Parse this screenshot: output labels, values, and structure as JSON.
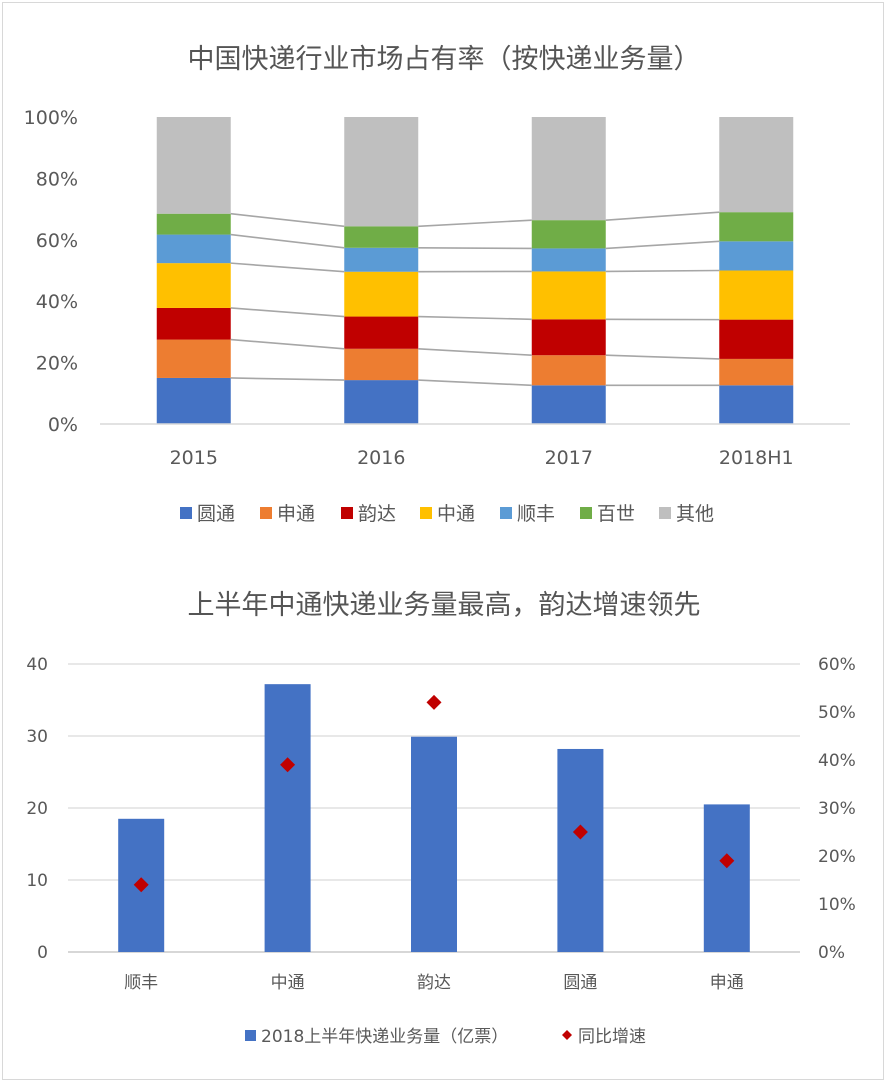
{
  "chart_data": [
    {
      "type": "bar",
      "stacked": true,
      "percent": true,
      "title": "中国快递行业市场占有率（按快递业务量）",
      "categories": [
        "2015",
        "2016",
        "2017",
        "2018H1"
      ],
      "ylim": [
        0,
        100
      ],
      "y_ticks": [
        "0%",
        "20%",
        "40%",
        "60%",
        "80%",
        "100%"
      ],
      "legend_position": "bottom",
      "series_lines": true,
      "series": [
        {
          "name": "圆通",
          "color": "#4472C4",
          "values": [
            15,
            14.3,
            12.6,
            12.6
          ]
        },
        {
          "name": "申通",
          "color": "#ED7D31",
          "values": [
            12.5,
            10.2,
            9.8,
            8.6
          ]
        },
        {
          "name": "韵达",
          "color": "#C00000",
          "values": [
            10.3,
            10.5,
            11.7,
            12.8
          ]
        },
        {
          "name": "中通",
          "color": "#FFC000",
          "values": [
            14.6,
            14.6,
            15.6,
            16.0
          ]
        },
        {
          "name": "顺丰",
          "color": "#5B9BD5",
          "values": [
            9.3,
            7.8,
            7.5,
            9.5
          ]
        },
        {
          "name": "百世",
          "color": "#70AD47",
          "values": [
            6.8,
            7.0,
            9.2,
            9.5
          ]
        },
        {
          "name": "其他",
          "color": "#BFBFBF",
          "values": [
            31.5,
            35.6,
            33.6,
            31.0
          ]
        }
      ]
    },
    {
      "type": "bar",
      "title": "上半年中通快递业务量最高，韵达增速领先",
      "categories": [
        "顺丰",
        "中通",
        "韵达",
        "圆通",
        "申通"
      ],
      "ylim": [
        0,
        40
      ],
      "y_ticks": [
        "0",
        "10",
        "20",
        "30",
        "40"
      ],
      "y2lim": [
        0,
        60
      ],
      "y2_ticks": [
        "0%",
        "10%",
        "20%",
        "30%",
        "40%",
        "50%",
        "60%"
      ],
      "legend_position": "bottom",
      "grid": true,
      "series": [
        {
          "name": "2018上半年快递业务量（亿票）",
          "type": "bar",
          "axis": "left",
          "color": "#4472C4",
          "values": [
            18.5,
            37.2,
            29.9,
            28.2,
            20.5
          ]
        },
        {
          "name": "同比增速",
          "type": "scatter",
          "marker": "diamond",
          "axis": "right",
          "color": "#C00000",
          "values": [
            14,
            39,
            52,
            25,
            19
          ]
        }
      ]
    }
  ]
}
